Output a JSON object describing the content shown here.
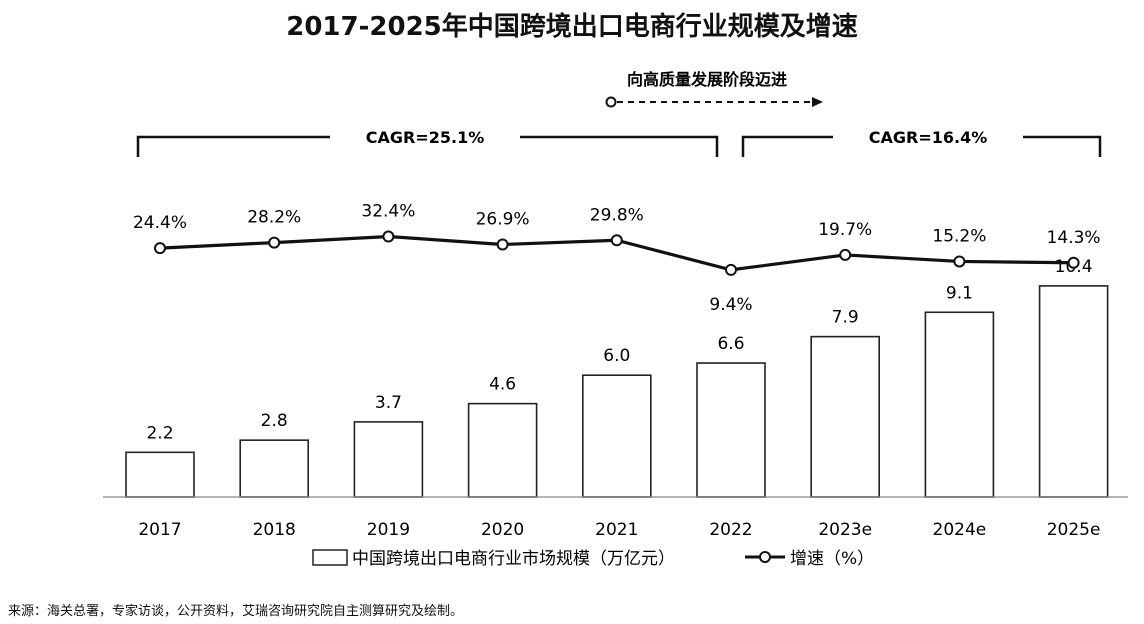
{
  "title": "2017-2025年中国跨境出口电商行业规模及增速",
  "source": "来源：海关总署，专家访谈，公开资料，艾瑞咨询研究院自主测算研究及绘制。",
  "annotation": "向高质量发展阶段迈进",
  "cagr": [
    {
      "label": "CAGR=25.1%",
      "from_index": 0,
      "to_index": 5
    },
    {
      "label": "CAGR=16.4%",
      "from_index": 5,
      "to_index": 8
    }
  ],
  "chart_data": {
    "type": "bar",
    "title": "2017-2025年中国跨境出口电商行业规模及增速",
    "categories": [
      "2017",
      "2018",
      "2019",
      "2020",
      "2021",
      "2022",
      "2023e",
      "2024e",
      "2025e"
    ],
    "series": [
      {
        "name": "中国跨境出口电商行业市场规模（万亿元）",
        "type": "bar",
        "values": [
          2.2,
          2.8,
          3.7,
          4.6,
          6.0,
          6.6,
          7.9,
          9.1,
          10.4
        ],
        "labels": [
          "2.2",
          "2.8",
          "3.7",
          "4.6",
          "6.0",
          "6.6",
          "7.9",
          "9.1",
          "10.4"
        ]
      },
      {
        "name": "增速（%）",
        "type": "line",
        "values": [
          24.4,
          28.2,
          32.4,
          26.9,
          29.8,
          9.4,
          19.7,
          15.2,
          14.3
        ],
        "labels": [
          "24.4%",
          "28.2%",
          "32.4%",
          "26.9%",
          "29.8%",
          "9.4%",
          "19.7%",
          "15.2%",
          "14.3%"
        ]
      }
    ],
    "legend": {
      "position": "bottom",
      "items": [
        "中国跨境出口电商行业市场规模（万亿元）",
        "增速（%）"
      ]
    },
    "grid": false
  }
}
